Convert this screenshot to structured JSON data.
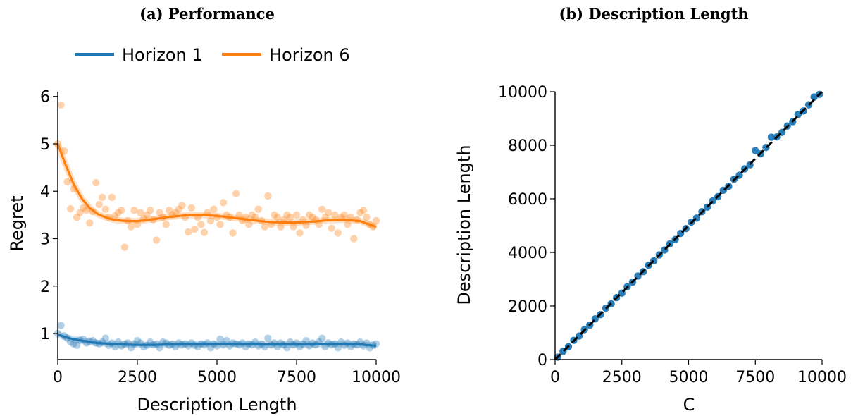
{
  "chart_data": [
    {
      "type": "scatter",
      "title": "(a) Performance",
      "xlabel": "Description Length",
      "ylabel": "Regret",
      "xlim": [
        0,
        10000
      ],
      "ylim": [
        0.45,
        6.1
      ],
      "xticks": [
        0,
        2500,
        5000,
        7500,
        10000
      ],
      "yticks": [
        1,
        2,
        3,
        4,
        5,
        6
      ],
      "legend": {
        "placement": "top-center"
      },
      "series": [
        {
          "name": "Horizon 1",
          "color": "#1f77b4",
          "x": [
            0,
            100,
            200,
            300,
            400,
            500,
            600,
            700,
            800,
            900,
            1000,
            1100,
            1200,
            1300,
            1400,
            1500,
            1600,
            1700,
            1800,
            1900,
            2000,
            2100,
            2200,
            2300,
            2400,
            2500,
            2600,
            2700,
            2800,
            2900,
            3000,
            3100,
            3200,
            3300,
            3400,
            3500,
            3600,
            3700,
            3800,
            3900,
            4000,
            4100,
            4200,
            4300,
            4400,
            4500,
            4600,
            4700,
            4800,
            4900,
            5000,
            5100,
            5200,
            5300,
            5400,
            5500,
            5600,
            5700,
            5800,
            5900,
            6000,
            6100,
            6200,
            6300,
            6400,
            6500,
            6600,
            6700,
            6800,
            6900,
            7000,
            7100,
            7200,
            7300,
            7400,
            7500,
            7600,
            7700,
            7800,
            7900,
            8000,
            8100,
            8200,
            8300,
            8400,
            8500,
            8600,
            8700,
            8800,
            8900,
            9000,
            9100,
            9200,
            9300,
            9400,
            9500,
            9600,
            9700,
            9800,
            9900,
            10000
          ],
          "y": [
            1.0,
            1.17,
            0.95,
            0.9,
            0.82,
            0.78,
            0.75,
            0.86,
            0.88,
            0.8,
            0.84,
            0.85,
            0.8,
            0.78,
            0.82,
            0.9,
            0.75,
            0.8,
            0.72,
            0.82,
            0.74,
            0.78,
            0.8,
            0.7,
            0.78,
            0.85,
            0.8,
            0.72,
            0.75,
            0.82,
            0.76,
            0.78,
            0.7,
            0.82,
            0.8,
            0.75,
            0.78,
            0.72,
            0.8,
            0.76,
            0.78,
            0.74,
            0.8,
            0.75,
            0.72,
            0.78,
            0.76,
            0.8,
            0.7,
            0.78,
            0.74,
            0.88,
            0.76,
            0.85,
            0.74,
            0.8,
            0.78,
            0.76,
            0.8,
            0.72,
            0.78,
            0.76,
            0.82,
            0.74,
            0.78,
            0.72,
            0.9,
            0.76,
            0.8,
            0.72,
            0.8,
            0.76,
            0.7,
            0.82,
            0.76,
            0.8,
            0.72,
            0.78,
            0.85,
            0.74,
            0.8,
            0.76,
            0.82,
            0.9,
            0.72,
            0.8,
            0.76,
            0.78,
            0.7,
            0.82,
            0.75,
            0.8,
            0.72,
            0.78,
            0.76,
            0.82,
            0.74,
            0.8,
            0.7,
            0.76,
            0.78
          ],
          "trend_x": [
            0,
            250,
            500,
            750,
            1000,
            1250,
            1500,
            1750,
            2000,
            2500,
            3000,
            3500,
            4000,
            4500,
            5000,
            5500,
            6000,
            6500,
            7000,
            7500,
            8000,
            8500,
            9000,
            9500,
            10000
          ],
          "trend_y": [
            0.98,
            0.92,
            0.88,
            0.85,
            0.82,
            0.8,
            0.79,
            0.78,
            0.77,
            0.76,
            0.76,
            0.77,
            0.78,
            0.78,
            0.78,
            0.78,
            0.78,
            0.77,
            0.77,
            0.77,
            0.77,
            0.78,
            0.78,
            0.77,
            0.74
          ]
        },
        {
          "name": "Horizon 6",
          "color": "#ff7f0e",
          "x": [
            0,
            100,
            200,
            300,
            400,
            500,
            600,
            700,
            800,
            900,
            1000,
            1100,
            1200,
            1300,
            1400,
            1500,
            1600,
            1700,
            1800,
            1900,
            2000,
            2100,
            2200,
            2300,
            2400,
            2500,
            2600,
            2700,
            2800,
            2900,
            3000,
            3100,
            3200,
            3300,
            3400,
            3500,
            3600,
            3700,
            3800,
            3900,
            4000,
            4100,
            4200,
            4300,
            4400,
            4500,
            4600,
            4700,
            4800,
            4900,
            5000,
            5100,
            5200,
            5300,
            5400,
            5500,
            5600,
            5700,
            5800,
            5900,
            6000,
            6100,
            6200,
            6300,
            6400,
            6500,
            6600,
            6700,
            6800,
            6900,
            7000,
            7100,
            7200,
            7300,
            7400,
            7500,
            7600,
            7700,
            7800,
            7900,
            8000,
            8100,
            8200,
            8300,
            8400,
            8500,
            8600,
            8700,
            8800,
            8900,
            9000,
            9100,
            9200,
            9300,
            9400,
            9500,
            9600,
            9700,
            9800,
            9900,
            10000
          ],
          "y": [
            5.0,
            5.82,
            4.85,
            4.2,
            3.63,
            4.05,
            3.45,
            3.55,
            3.65,
            3.6,
            3.33,
            3.57,
            4.18,
            3.72,
            3.87,
            3.62,
            3.45,
            3.87,
            3.48,
            3.55,
            3.6,
            2.82,
            3.38,
            3.25,
            3.6,
            3.3,
            3.55,
            3.42,
            3.5,
            3.6,
            3.4,
            2.97,
            3.55,
            3.45,
            3.3,
            3.6,
            3.5,
            3.55,
            3.62,
            3.7,
            3.45,
            3.14,
            3.65,
            3.2,
            3.45,
            3.3,
            3.13,
            3.55,
            3.38,
            3.62,
            3.45,
            3.3,
            3.76,
            3.5,
            3.45,
            3.12,
            3.95,
            3.5,
            3.38,
            3.45,
            3.3,
            3.5,
            3.45,
            3.62,
            3.38,
            3.25,
            3.9,
            3.3,
            3.5,
            3.45,
            3.25,
            3.4,
            3.5,
            3.45,
            3.25,
            3.5,
            3.12,
            3.4,
            3.28,
            3.5,
            3.45,
            3.4,
            3.3,
            3.62,
            3.45,
            3.55,
            3.22,
            3.5,
            3.12,
            3.45,
            3.5,
            3.3,
            3.45,
            3.0,
            3.4,
            3.55,
            3.6,
            3.45,
            3.3,
            3.25,
            3.38
          ],
          "trend_x": [
            0,
            250,
            500,
            750,
            1000,
            1250,
            1500,
            1750,
            2000,
            2250,
            2500,
            2750,
            3000,
            3500,
            4000,
            4500,
            5000,
            5500,
            6000,
            6500,
            7000,
            7500,
            8000,
            8500,
            9000,
            9500,
            10000
          ],
          "trend_y": [
            5.0,
            4.55,
            4.15,
            3.85,
            3.65,
            3.52,
            3.45,
            3.4,
            3.38,
            3.37,
            3.37,
            3.39,
            3.41,
            3.46,
            3.49,
            3.5,
            3.48,
            3.44,
            3.4,
            3.36,
            3.34,
            3.34,
            3.36,
            3.39,
            3.4,
            3.37,
            3.25
          ]
        }
      ]
    },
    {
      "type": "scatter",
      "title": "(b) Description Length",
      "xlabel": "C",
      "ylabel": "Description Length",
      "xlim": [
        0,
        10000
      ],
      "ylim": [
        0,
        10000
      ],
      "xticks": [
        0,
        2500,
        5000,
        7500,
        10000
      ],
      "yticks": [
        0,
        2000,
        4000,
        6000,
        8000,
        10000
      ],
      "series": [
        {
          "color": "#1f77b4",
          "x": [
            100,
            300,
            500,
            700,
            900,
            1100,
            1300,
            1500,
            1700,
            1900,
            2100,
            2300,
            2500,
            2700,
            2900,
            3100,
            3300,
            3500,
            3700,
            3900,
            4100,
            4300,
            4500,
            4700,
            4900,
            5100,
            5300,
            5500,
            5700,
            5900,
            6100,
            6300,
            6500,
            6700,
            6900,
            7100,
            7300,
            7500,
            7700,
            7900,
            8100,
            8300,
            8500,
            8700,
            8900,
            9100,
            9300,
            9500,
            9700,
            9900
          ],
          "y": [
            90,
            310,
            480,
            720,
            880,
            1120,
            1290,
            1520,
            1680,
            1920,
            2080,
            2310,
            2480,
            2720,
            2890,
            3120,
            3280,
            3520,
            3690,
            3910,
            4090,
            4320,
            4480,
            4710,
            4890,
            5130,
            5280,
            5520,
            5690,
            5920,
            6080,
            6320,
            6470,
            6730,
            6880,
            7120,
            7270,
            7800,
            7680,
            7920,
            8300,
            8310,
            8480,
            8720,
            8880,
            9150,
            9280,
            9510,
            9800,
            9900
          ]
        }
      ],
      "reference_line": {
        "style": "dashed",
        "color": "#000000",
        "x": [
          0,
          10000
        ],
        "y": [
          0,
          10000
        ]
      }
    }
  ]
}
